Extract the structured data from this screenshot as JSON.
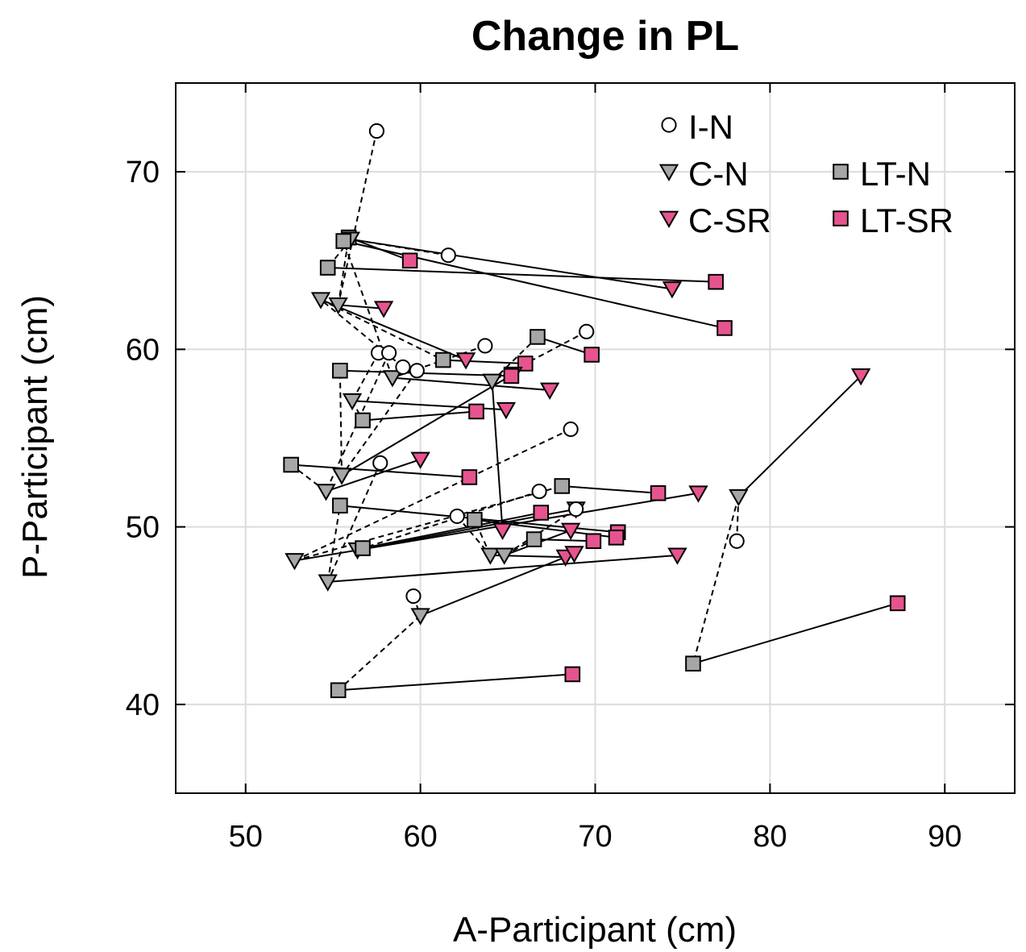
{
  "chart_data": {
    "type": "scatter",
    "title": "Change in PL",
    "xlabel": "A-Participant (cm)",
    "ylabel": "P-Participant (cm)",
    "xlim": [
      46,
      94
    ],
    "ylim": [
      35,
      75
    ],
    "xticks": [
      50,
      60,
      70,
      80,
      90
    ],
    "yticks": [
      40,
      50,
      60,
      70
    ],
    "grid": true,
    "legend_position": "top-right",
    "colors": {
      "gray": "#a6a6a6",
      "pink": "#e6548f",
      "grid": "#dcdcdc",
      "line": "#000000"
    },
    "series": [
      {
        "key": "IN",
        "name": "I-N",
        "marker": "circle",
        "fill": "#ffffff"
      },
      {
        "key": "CN",
        "name": "C-N",
        "marker": "triangle-down",
        "fill": "#a6a6a6"
      },
      {
        "key": "CSR",
        "name": "C-SR",
        "marker": "triangle-down",
        "fill": "#e6548f"
      },
      {
        "key": "LTN",
        "name": "LT-N",
        "marker": "square",
        "fill": "#a6a6a6"
      },
      {
        "key": "LTSR",
        "name": "LT-SR",
        "marker": "square",
        "fill": "#e6548f"
      }
    ],
    "participants": [
      {
        "IN": [
          57.5,
          72.3
        ],
        "CN": [
          55.3,
          62.5
        ],
        "CSR": [
          57.9,
          62.3
        ],
        "LTN": [
          55.9,
          66.3
        ],
        "LTSR": [
          59.4,
          65.0
        ]
      },
      {
        "IN": [
          61.6,
          65.3
        ],
        "CN": [
          56.0,
          66.2
        ],
        "CSR": [
          74.4,
          63.4
        ],
        "LTN": [
          54.7,
          64.6
        ],
        "LTSR": [
          76.9,
          63.8
        ]
      },
      {
        "IN": [
          63.7,
          60.2
        ],
        "CN": [
          58.4,
          58.4
        ],
        "CSR": [
          67.4,
          57.7
        ],
        "LTN": [
          55.6,
          66.1
        ],
        "LTSR": [
          77.4,
          61.2
        ]
      },
      {
        "IN": [
          69.5,
          61.0
        ],
        "CN": [
          64.1,
          58.2
        ],
        "CSR": [
          64.7,
          49.8
        ],
        "LTN": [
          66.7,
          60.7
        ],
        "LTSR": [
          69.8,
          59.7
        ]
      },
      {
        "IN": [
          59.0,
          59.0
        ],
        "CN": [
          54.3,
          62.8
        ],
        "CSR": [
          62.6,
          59.4
        ],
        "LTN": [
          61.3,
          59.4
        ],
        "LTSR": [
          66.0,
          59.2
        ]
      },
      {
        "IN": [
          57.6,
          59.8
        ],
        "CN": [
          56.1,
          57.1
        ],
        "CSR": [
          64.9,
          56.6
        ],
        "LTN": [
          56.7,
          56.0
        ],
        "LTSR": [
          63.2,
          56.5
        ]
      },
      {
        "IN": [
          59.8,
          58.8
        ],
        "CN": [
          55.5,
          52.9
        ],
        "CSR": [
          65.3,
          58.6
        ],
        "LTN": [
          55.4,
          58.8
        ],
        "LTSR": [
          65.2,
          58.5
        ]
      },
      {
        "IN": [
          58.2,
          59.8
        ],
        "CN": [
          54.6,
          52.0
        ],
        "CSR": [
          60.0,
          53.8
        ],
        "LTN": [
          52.6,
          53.5
        ],
        "LTSR": [
          62.8,
          52.8
        ]
      },
      {
        "IN": [
          68.6,
          55.5
        ],
        "CN": [
          52.8,
          48.1
        ],
        "CSR": [
          75.9,
          51.9
        ],
        "LTN": [
          68.1,
          52.3
        ],
        "LTSR": [
          73.6,
          51.9
        ]
      },
      {
        "IN": [
          57.7,
          53.6
        ],
        "CN": [
          54.7,
          46.9
        ],
        "CSR": [
          74.7,
          48.4
        ],
        "LTN": [
          55.4,
          51.2
        ],
        "LTSR": [
          71.3,
          49.7
        ]
      },
      {
        "IN": [
          66.8,
          52.0
        ],
        "CN": [
          56.4,
          48.7
        ],
        "CSR": [
          68.9,
          51.0
        ],
        "LTN": [
          56.7,
          48.8
        ],
        "LTSR": [
          66.9,
          50.8
        ]
      },
      {
        "IN": [
          62.1,
          50.6
        ],
        "CN": [
          64.0,
          48.4
        ],
        "CSR": [
          68.3,
          48.3
        ],
        "LTN": [
          63.1,
          50.4
        ],
        "LTSR": [
          71.2,
          49.4
        ]
      },
      {
        "IN": [
          68.9,
          51.0
        ],
        "CN": [
          64.8,
          48.4
        ],
        "CSR": [
          68.6,
          49.8
        ],
        "LTN": [
          66.5,
          49.3
        ],
        "LTSR": [
          69.9,
          49.2
        ]
      },
      {
        "IN": [
          59.6,
          46.1
        ],
        "CN": [
          60.0,
          45.0
        ],
        "CSR": [
          68.8,
          48.5
        ],
        "LTN": [
          55.3,
          40.8
        ],
        "LTSR": [
          68.7,
          41.7
        ]
      },
      {
        "IN": [
          78.1,
          49.2
        ],
        "CN": [
          78.2,
          51.7
        ],
        "CSR": [
          85.2,
          58.5
        ],
        "LTN": [
          75.6,
          42.3
        ],
        "LTSR": [
          87.3,
          45.7
        ]
      }
    ]
  }
}
